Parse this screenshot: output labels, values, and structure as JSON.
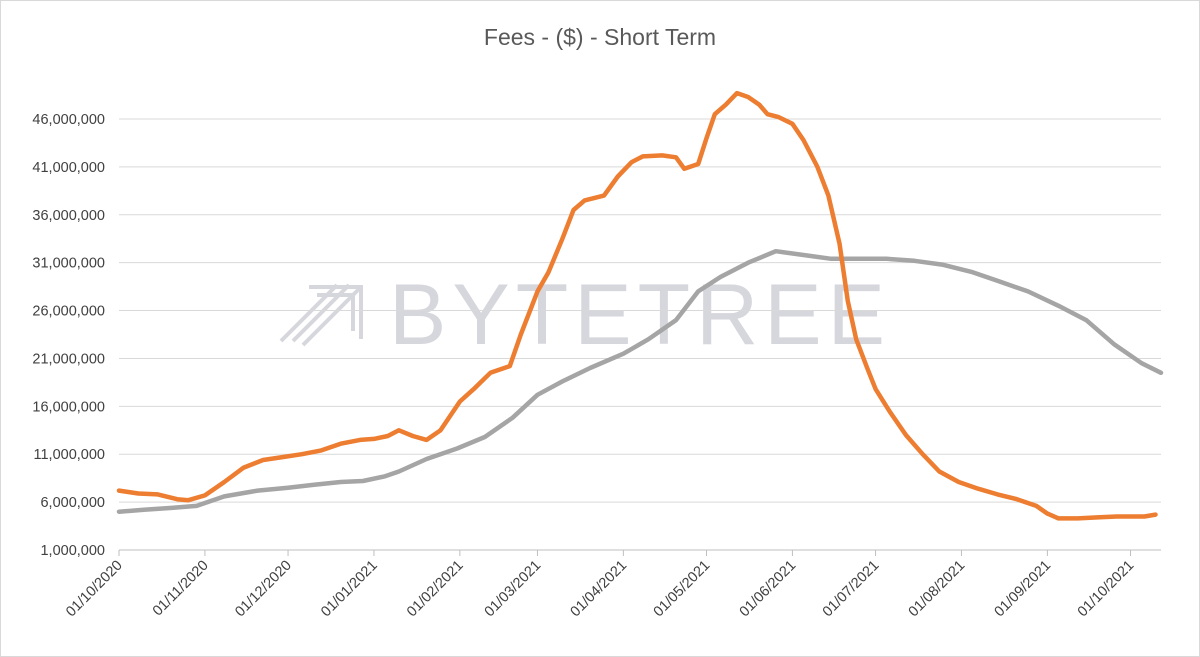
{
  "chart_data": {
    "type": "line",
    "title": "Fees - ($) - Short Term",
    "xlabel": "",
    "ylabel": "",
    "x_ticks": [
      "01/10/2020",
      "01/11/2020",
      "01/12/2020",
      "01/01/2021",
      "01/02/2021",
      "01/03/2021",
      "01/04/2021",
      "01/05/2021",
      "01/06/2021",
      "01/07/2021",
      "01/08/2021",
      "01/09/2021",
      "01/10/2021"
    ],
    "y_ticks": [
      "1,000,000",
      "6,000,000",
      "11,000,000",
      "16,000,000",
      "21,000,000",
      "26,000,000",
      "31,000,000",
      "36,000,000",
      "41,000,000",
      "46,000,000"
    ],
    "ylim": [
      1000000,
      50000000
    ],
    "xlim": [
      "2020-10-01",
      "2021-10-12"
    ],
    "grid": "horizontal",
    "legend": "none",
    "watermark": "BYTETREE",
    "series": [
      {
        "color": "#ed7d31",
        "points": [
          [
            "2020-10-01",
            7200000
          ],
          [
            "2020-10-08",
            6900000
          ],
          [
            "2020-10-15",
            6800000
          ],
          [
            "2020-10-22",
            6300000
          ],
          [
            "2020-10-26",
            6200000
          ],
          [
            "2020-11-01",
            6700000
          ],
          [
            "2020-11-08",
            8100000
          ],
          [
            "2020-11-15",
            9600000
          ],
          [
            "2020-11-22",
            10400000
          ],
          [
            "2020-11-29",
            10700000
          ],
          [
            "2020-12-06",
            11000000
          ],
          [
            "2020-12-13",
            11400000
          ],
          [
            "2020-12-20",
            12100000
          ],
          [
            "2020-12-27",
            12500000
          ],
          [
            "2021-01-01",
            12600000
          ],
          [
            "2021-01-06",
            12900000
          ],
          [
            "2021-01-10",
            13500000
          ],
          [
            "2021-01-15",
            12900000
          ],
          [
            "2021-01-20",
            12500000
          ],
          [
            "2021-01-25",
            13500000
          ],
          [
            "2021-02-01",
            16500000
          ],
          [
            "2021-02-06",
            17800000
          ],
          [
            "2021-02-12",
            19500000
          ],
          [
            "2021-02-19",
            20200000
          ],
          [
            "2021-02-23",
            23500000
          ],
          [
            "2021-03-01",
            28000000
          ],
          [
            "2021-03-05",
            30000000
          ],
          [
            "2021-03-10",
            33500000
          ],
          [
            "2021-03-14",
            36500000
          ],
          [
            "2021-03-18",
            37500000
          ],
          [
            "2021-03-25",
            38000000
          ],
          [
            "2021-03-30",
            40000000
          ],
          [
            "2021-04-04",
            41500000
          ],
          [
            "2021-04-08",
            42100000
          ],
          [
            "2021-04-15",
            42200000
          ],
          [
            "2021-04-20",
            42000000
          ],
          [
            "2021-04-23",
            40800000
          ],
          [
            "2021-04-28",
            41300000
          ],
          [
            "2021-05-01",
            44000000
          ],
          [
            "2021-05-04",
            46500000
          ],
          [
            "2021-05-08",
            47500000
          ],
          [
            "2021-05-12",
            48700000
          ],
          [
            "2021-05-16",
            48300000
          ],
          [
            "2021-05-20",
            47500000
          ],
          [
            "2021-05-23",
            46500000
          ],
          [
            "2021-05-27",
            46200000
          ],
          [
            "2021-06-01",
            45500000
          ],
          [
            "2021-06-05",
            43800000
          ],
          [
            "2021-06-10",
            41000000
          ],
          [
            "2021-06-14",
            38000000
          ],
          [
            "2021-06-18",
            33000000
          ],
          [
            "2021-06-21",
            27000000
          ],
          [
            "2021-06-24",
            23000000
          ],
          [
            "2021-06-28",
            20000000
          ],
          [
            "2021-07-01",
            17800000
          ],
          [
            "2021-07-06",
            15500000
          ],
          [
            "2021-07-12",
            13000000
          ],
          [
            "2021-07-18",
            11000000
          ],
          [
            "2021-07-24",
            9200000
          ],
          [
            "2021-07-31",
            8100000
          ],
          [
            "2021-08-07",
            7400000
          ],
          [
            "2021-08-14",
            6800000
          ],
          [
            "2021-08-21",
            6300000
          ],
          [
            "2021-08-28",
            5600000
          ],
          [
            "2021-09-01",
            4800000
          ],
          [
            "2021-09-05",
            4300000
          ],
          [
            "2021-09-12",
            4300000
          ],
          [
            "2021-09-19",
            4400000
          ],
          [
            "2021-09-26",
            4500000
          ],
          [
            "2021-10-01",
            4500000
          ],
          [
            "2021-10-06",
            4500000
          ],
          [
            "2021-10-10",
            4700000
          ]
        ]
      },
      {
        "color": "#a5a5a5",
        "points": [
          [
            "2020-10-01",
            5000000
          ],
          [
            "2020-10-10",
            5200000
          ],
          [
            "2020-10-20",
            5400000
          ],
          [
            "2020-10-29",
            5600000
          ],
          [
            "2020-11-08",
            6600000
          ],
          [
            "2020-11-20",
            7200000
          ],
          [
            "2020-12-01",
            7500000
          ],
          [
            "2020-12-10",
            7800000
          ],
          [
            "2020-12-20",
            8100000
          ],
          [
            "2020-12-28",
            8200000
          ],
          [
            "2021-01-05",
            8700000
          ],
          [
            "2021-01-10",
            9200000
          ],
          [
            "2021-01-20",
            10500000
          ],
          [
            "2021-01-31",
            11600000
          ],
          [
            "2021-02-10",
            12800000
          ],
          [
            "2021-02-20",
            14800000
          ],
          [
            "2021-03-01",
            17200000
          ],
          [
            "2021-03-10",
            18600000
          ],
          [
            "2021-03-20",
            20000000
          ],
          [
            "2021-04-01",
            21500000
          ],
          [
            "2021-04-10",
            23000000
          ],
          [
            "2021-04-20",
            25000000
          ],
          [
            "2021-04-28",
            28000000
          ],
          [
            "2021-05-06",
            29500000
          ],
          [
            "2021-05-16",
            31000000
          ],
          [
            "2021-05-26",
            32200000
          ],
          [
            "2021-06-05",
            31800000
          ],
          [
            "2021-06-15",
            31400000
          ],
          [
            "2021-06-25",
            31400000
          ],
          [
            "2021-07-05",
            31400000
          ],
          [
            "2021-07-15",
            31200000
          ],
          [
            "2021-07-25",
            30800000
          ],
          [
            "2021-08-05",
            30000000
          ],
          [
            "2021-08-15",
            29000000
          ],
          [
            "2021-08-25",
            28000000
          ],
          [
            "2021-09-05",
            26500000
          ],
          [
            "2021-09-15",
            25000000
          ],
          [
            "2021-09-25",
            22500000
          ],
          [
            "2021-10-05",
            20500000
          ],
          [
            "2021-10-12",
            19500000
          ]
        ]
      }
    ]
  }
}
